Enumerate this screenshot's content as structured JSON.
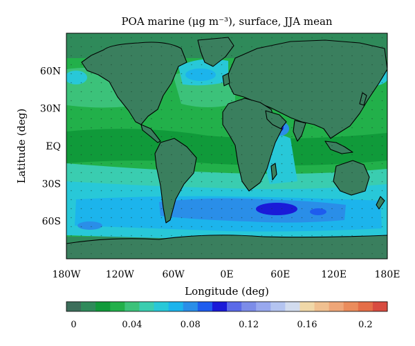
{
  "title": "POA marine (μg m⁻³), surface, JJA mean",
  "map": {
    "xlabel": "Longitude (deg)",
    "ylabel": "Latitude (deg)",
    "x_ticks": [
      "180W",
      "120W",
      "60W",
      "0E",
      "60E",
      "120E",
      "180E"
    ],
    "y_ticks": [
      "60N",
      "30N",
      "EQ",
      "30S",
      "60S"
    ],
    "x_tick_values": [
      -180,
      -120,
      -60,
      0,
      60,
      120,
      180
    ],
    "y_tick_values": [
      60,
      30,
      0,
      -30,
      -60
    ],
    "lon_range": [
      -180,
      180
    ],
    "lat_range": [
      -90,
      90
    ],
    "land_color": "#3a7f5e",
    "coastline_color": "#000000"
  },
  "colorbar": {
    "range": [
      0,
      0.22
    ],
    "tick_labels": [
      "0",
      "0.04",
      "0.08",
      "0.12",
      "0.16",
      "0.2"
    ],
    "tick_values": [
      0,
      0.04,
      0.08,
      0.12,
      0.16,
      0.2
    ],
    "colors": [
      "#3c6e5a",
      "#2f8a5a",
      "#109a3a",
      "#22b04a",
      "#3cc27a",
      "#3acdb0",
      "#28c8d8",
      "#1cb4ec",
      "#2a8ee8",
      "#1e5cee",
      "#1a1ad8",
      "#5a6ae8",
      "#7c8ce8",
      "#98a8ee",
      "#b4c4f0",
      "#d2dcee",
      "#f0d8a8",
      "#f0c090",
      "#eea678",
      "#ea8c5c",
      "#e46e48",
      "#d84c40"
    ]
  }
}
